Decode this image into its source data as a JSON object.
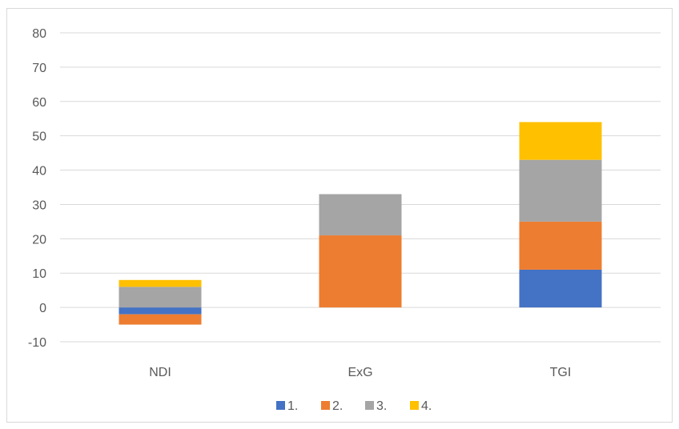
{
  "chart_data": {
    "type": "bar",
    "stacked": true,
    "categories": [
      "NDI",
      "ExG",
      "TGI"
    ],
    "series": [
      {
        "name": "1.",
        "color": "#4472C4",
        "values": [
          -2,
          0,
          11
        ]
      },
      {
        "name": "2.",
        "color": "#ED7D31",
        "values": [
          -3,
          21,
          14
        ]
      },
      {
        "name": "3.",
        "color": "#A5A5A5",
        "values": [
          6,
          12,
          18
        ]
      },
      {
        "name": "4.",
        "color": "#FFC000",
        "values": [
          2,
          0,
          11
        ]
      }
    ],
    "ylim": [
      -10,
      80
    ],
    "yticks": [
      -10,
      0,
      10,
      20,
      30,
      40,
      50,
      60,
      70,
      80
    ],
    "ytick_labels": [
      "-10",
      "0",
      "10",
      "20",
      "30",
      "40",
      "50",
      "60",
      "70",
      "80"
    ],
    "title": "",
    "xlabel": "",
    "ylabel": "",
    "grid": true,
    "legend": "bottom"
  }
}
